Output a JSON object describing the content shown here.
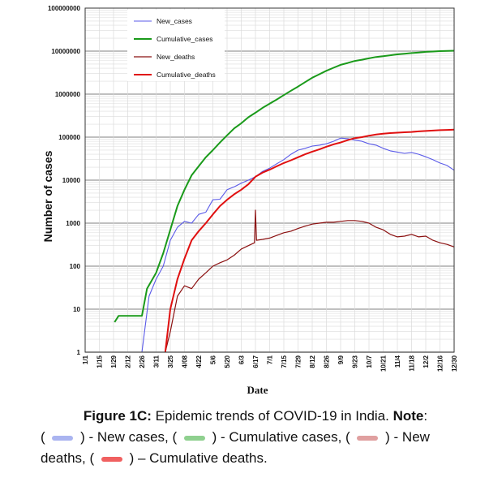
{
  "chart_data": {
    "type": "line",
    "xlabel": "Date",
    "ylabel": "Number of cases",
    "yscale": "log",
    "ylim": [
      1,
      100000000
    ],
    "y_tick_labels": [
      "1",
      "10",
      "100",
      "1000",
      "10000",
      "100000",
      "1000000",
      "10000000",
      "100000000"
    ],
    "x_tick_labels": [
      "1/1",
      "1/15",
      "1/29",
      "2/12",
      "2/26",
      "3/11",
      "3/25",
      "4/08",
      "4/22",
      "5/6",
      "5/20",
      "6/3",
      "6/17",
      "7/1",
      "7/15",
      "7/29",
      "8/12",
      "8/26",
      "9/9",
      "9/23",
      "10/7",
      "10/21",
      "11/4",
      "11/18",
      "12/2",
      "12/16",
      "12/30"
    ],
    "grid": true,
    "legend_position": "top-left",
    "series": [
      {
        "name": "New_cases",
        "color": "#5a5ae8",
        "x": [
          "1/30",
          "2/26",
          "3/4",
          "3/11",
          "3/18",
          "3/25",
          "4/1",
          "4/8",
          "4/15",
          "4/22",
          "4/29",
          "5/6",
          "5/13",
          "5/20",
          "5/27",
          "6/3",
          "6/10",
          "6/17",
          "6/24",
          "7/1",
          "7/8",
          "7/15",
          "7/22",
          "7/29",
          "8/5",
          "8/12",
          "8/19",
          "8/26",
          "9/2",
          "9/9",
          "9/16",
          "9/23",
          "9/30",
          "10/7",
          "10/14",
          "10/21",
          "10/28",
          "11/4",
          "11/11",
          "11/18",
          "11/25",
          "12/2",
          "12/9",
          "12/16",
          "12/23",
          "12/30"
        ],
        "y": [
          1,
          1,
          20,
          50,
          100,
          400,
          800,
          1100,
          1000,
          1600,
          1800,
          3500,
          3600,
          6000,
          7000,
          8500,
          10000,
          12000,
          16000,
          19000,
          24000,
          30000,
          40000,
          50000,
          55000,
          62000,
          65000,
          70000,
          80000,
          95000,
          92000,
          85000,
          80000,
          70000,
          65000,
          55000,
          48000,
          45000,
          42000,
          44000,
          40000,
          35000,
          30000,
          25000,
          22000,
          17000
        ]
      },
      {
        "name": "Cumulative_cases",
        "color": "#1a9a1a",
        "x": [
          "1/30",
          "2/3",
          "2/26",
          "3/2",
          "3/11",
          "3/18",
          "3/25",
          "4/1",
          "4/8",
          "4/15",
          "4/22",
          "4/29",
          "5/6",
          "5/13",
          "5/20",
          "5/27",
          "6/3",
          "6/10",
          "6/17",
          "6/24",
          "7/1",
          "7/8",
          "7/15",
          "7/22",
          "7/29",
          "8/5",
          "8/12",
          "8/19",
          "8/26",
          "9/2",
          "9/9",
          "9/16",
          "9/23",
          "9/30",
          "10/7",
          "10/14",
          "10/21",
          "10/28",
          "11/4",
          "11/11",
          "11/18",
          "11/25",
          "12/2",
          "12/9",
          "12/16",
          "12/23",
          "12/30"
        ],
        "y": [
          5,
          7,
          7,
          30,
          70,
          200,
          700,
          2500,
          6000,
          13000,
          21000,
          34000,
          50000,
          75000,
          110000,
          160000,
          210000,
          290000,
          370000,
          480000,
          600000,
          750000,
          950000,
          1200000,
          1500000,
          1900000,
          2400000,
          2900000,
          3500000,
          4100000,
          4800000,
          5300000,
          5900000,
          6300000,
          6800000,
          7300000,
          7600000,
          8000000,
          8400000,
          8700000,
          9000000,
          9300000,
          9600000,
          9800000,
          10000000,
          10100000,
          10200000
        ]
      },
      {
        "name": "New_deaths",
        "color": "#8b1010",
        "x": [
          "3/20",
          "3/25",
          "4/1",
          "4/8",
          "4/15",
          "4/22",
          "4/29",
          "5/6",
          "5/13",
          "5/20",
          "5/27",
          "6/3",
          "6/10",
          "6/16",
          "6/17",
          "6/18",
          "6/24",
          "7/1",
          "7/8",
          "7/15",
          "7/22",
          "7/29",
          "8/5",
          "8/12",
          "8/19",
          "8/26",
          "9/2",
          "9/9",
          "9/16",
          "9/23",
          "9/30",
          "10/7",
          "10/14",
          "10/21",
          "10/28",
          "11/4",
          "11/11",
          "11/18",
          "11/25",
          "12/2",
          "12/9",
          "12/16",
          "12/23",
          "12/30"
        ],
        "y": [
          1,
          3,
          20,
          35,
          30,
          50,
          70,
          100,
          120,
          140,
          180,
          250,
          300,
          350,
          2000,
          400,
          420,
          450,
          520,
          600,
          650,
          750,
          850,
          950,
          1000,
          1050,
          1050,
          1100,
          1150,
          1150,
          1100,
          1000,
          800,
          700,
          550,
          480,
          500,
          550,
          480,
          500,
          400,
          350,
          320,
          280
        ]
      },
      {
        "name": "Cumulative_deaths",
        "color": "#e01010",
        "x": [
          "3/20",
          "3/25",
          "4/1",
          "4/8",
          "4/15",
          "4/22",
          "4/29",
          "5/6",
          "5/13",
          "5/20",
          "5/27",
          "6/3",
          "6/10",
          "6/17",
          "6/24",
          "7/1",
          "7/8",
          "7/15",
          "7/22",
          "7/29",
          "8/5",
          "8/12",
          "8/19",
          "8/26",
          "9/2",
          "9/9",
          "9/16",
          "9/23",
          "9/30",
          "10/7",
          "10/14",
          "10/21",
          "10/28",
          "11/4",
          "11/11",
          "11/18",
          "11/25",
          "12/2",
          "12/9",
          "12/16",
          "12/23",
          "12/30"
        ],
        "y": [
          1,
          10,
          50,
          150,
          400,
          650,
          1000,
          1600,
          2500,
          3500,
          4700,
          6000,
          8000,
          12000,
          15000,
          17500,
          21000,
          25000,
          29000,
          34000,
          40000,
          46000,
          52000,
          60000,
          68000,
          75000,
          85000,
          95000,
          100000,
          108000,
          115000,
          120000,
          124000,
          127000,
          130000,
          132000,
          136000,
          139000,
          142000,
          145000,
          147000,
          149000
        ]
      }
    ]
  },
  "caption": {
    "figure_label": "Figure 1C:",
    "figure_text": " Epidemic trends of COVID-19 in India.",
    "note_label": "Note",
    "note_colon": ":",
    "line2_open": "(",
    "new_cases_text": ") - New cases, (",
    "cumulative_cases_text": ") - Cumulative cases, (",
    "new_deaths_text": ") - New",
    "line3_start": "deaths, (",
    "cumulative_deaths_text": ") – Cumulative deaths."
  }
}
